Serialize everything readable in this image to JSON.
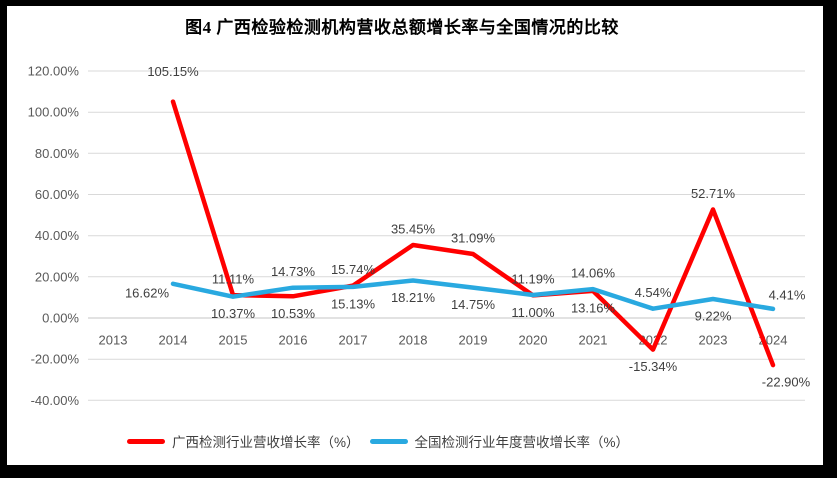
{
  "title": "图4 广西检验检测机构营收总额增长率与全国情况的比较",
  "chart_data": {
    "type": "line",
    "categories": [
      "2013",
      "2014",
      "2015",
      "2016",
      "2017",
      "2018",
      "2019",
      "2020",
      "2021",
      "2022",
      "2023",
      "2024"
    ],
    "series": [
      {
        "name": "广西检测行业营收增长率（%）",
        "color": "#FF0000",
        "values": [
          null,
          105.15,
          11.11,
          10.53,
          15.74,
          35.45,
          31.09,
          11.0,
          13.16,
          -15.34,
          52.71,
          -22.9
        ],
        "label_placement": [
          null,
          "above-far",
          "above",
          "below",
          "above",
          "above",
          "above",
          "below",
          "below",
          "below",
          "above",
          "below-right"
        ]
      },
      {
        "name": "全国检测行业年度营收增长率（%）",
        "color": "#29A9E0",
        "values": [
          null,
          16.62,
          10.37,
          14.73,
          15.13,
          18.21,
          14.75,
          11.19,
          14.06,
          4.54,
          9.22,
          4.41
        ],
        "label_placement": [
          null,
          "below-left",
          "below",
          "above",
          "below",
          "below",
          "below",
          "above",
          "above",
          "above",
          "below",
          "above-right"
        ]
      }
    ],
    "title": "图4 广西检验检测机构营收总额增长率与全国情况的比较",
    "xlabel": "",
    "ylabel": "",
    "ylim": [
      -40,
      120
    ],
    "ytick_step": 20,
    "ytick_format": "0.00%",
    "grid": true,
    "legend_position": "bottom",
    "colors": {
      "gridline": "#D9D9D9",
      "zero_line": "#C6C6C6",
      "tick_text": "#595959",
      "data_label_text": "#3F3F3F",
      "frame": "#000000",
      "background": "#FFFFFF"
    }
  }
}
